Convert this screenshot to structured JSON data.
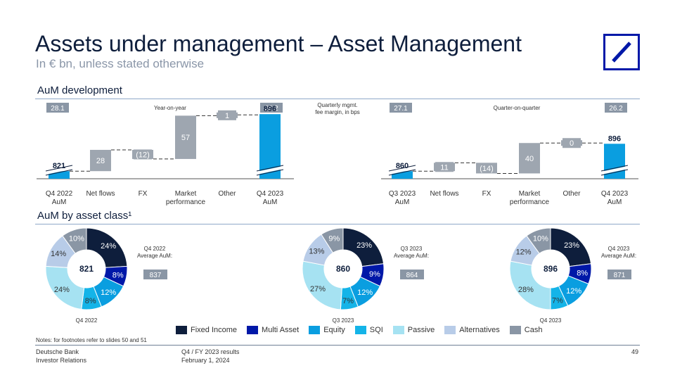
{
  "page": {
    "title": "Assets under management – Asset Management",
    "subtitle": "In € bn, unless stated otherwise",
    "section1": "AuM development",
    "section2": "AuM by asset class¹",
    "notes": "Notes: for footnotes refer to slides 50 and 51",
    "footer_left_1": "Deutsche Bank",
    "footer_left_2": "Investor Relations",
    "footer_mid_1": "Q4 / FY 2023 results",
    "footer_mid_2": "February 1, 2024",
    "page_number": "49"
  },
  "colors": {
    "accent_blue": "#0a9ee0",
    "gray": "#9ea6b0",
    "badge": "#8a96a5",
    "navy": "#0e1e3c",
    "logo_blue": "#0018a8"
  },
  "chart_data": [
    {
      "type": "bar",
      "subtype": "waterfall",
      "title": "Year-on-year",
      "categories": [
        "Q4 2022\nAuM",
        "Net flows",
        "FX",
        "Market\nperformance",
        "Other",
        "Q4 2023\nAuM"
      ],
      "values": [
        821,
        28,
        -12,
        57,
        1,
        896
      ],
      "value_labels": [
        "821",
        "28",
        "(12)",
        "57",
        "1",
        "896"
      ],
      "kinds": [
        "total",
        "delta",
        "delta",
        "delta",
        "delta",
        "total"
      ],
      "fee_margins": [
        "28.1",
        "26.2"
      ],
      "axis_break": true
    },
    {
      "type": "bar",
      "subtype": "waterfall",
      "title": "Quarter-on-quarter",
      "categories": [
        "Q3 2023\nAuM",
        "Net flows",
        "FX",
        "Market\nperformance",
        "Other",
        "Q4 2023\nAuM"
      ],
      "values": [
        860,
        11,
        -14,
        40,
        0,
        896
      ],
      "value_labels": [
        "860",
        "11",
        "(14)",
        "40",
        "0",
        "896"
      ],
      "kinds": [
        "total",
        "delta",
        "delta",
        "delta",
        "delta",
        "total"
      ],
      "fee_margins": [
        "27.1",
        "26.2"
      ],
      "axis_break": true
    },
    {
      "type": "pie",
      "variant": "donut",
      "title": "Q4 2022",
      "center_value": "821",
      "labels": [
        "Fixed Income",
        "Multi Asset",
        "Equity",
        "SQI",
        "Passive",
        "Alternatives",
        "Cash"
      ],
      "values": [
        24,
        8,
        12,
        8,
        24,
        14,
        10
      ],
      "average_aum_label": "Q4 2022\nAverage AuM:",
      "average_aum": "837"
    },
    {
      "type": "pie",
      "variant": "donut",
      "title": "Q3 2023",
      "center_value": "860",
      "labels": [
        "Fixed Income",
        "Multi Asset",
        "Equity",
        "SQI",
        "Passive",
        "Alternatives",
        "Cash"
      ],
      "values": [
        23,
        9,
        12,
        7,
        27,
        13,
        9
      ],
      "average_aum_label": "Q3 2023\nAverage AuM:",
      "average_aum": "864"
    },
    {
      "type": "pie",
      "variant": "donut",
      "title": "Q4 2023",
      "center_value": "896",
      "labels": [
        "Fixed Income",
        "Multi Asset",
        "Equity",
        "SQI",
        "Passive",
        "Alternatives",
        "Cash"
      ],
      "values": [
        23,
        8,
        12,
        7,
        28,
        12,
        10
      ],
      "average_aum_label": "Q4 2023\nAverage AuM:",
      "average_aum": "871"
    }
  ],
  "fee_margin_label": "Quarterly mgmt.\nfee margin, in bps",
  "legend": [
    {
      "label": "Fixed Income",
      "color": "#0e1e3c"
    },
    {
      "label": "Multi Asset",
      "color": "#0018a8"
    },
    {
      "label": "Equity",
      "color": "#0a9ee0"
    },
    {
      "label": "SQI",
      "color": "#14b4e8"
    },
    {
      "label": "Passive",
      "color": "#a6e2f2"
    },
    {
      "label": "Alternatives",
      "color": "#b8cce8"
    },
    {
      "label": "Cash",
      "color": "#8a96a5"
    }
  ]
}
